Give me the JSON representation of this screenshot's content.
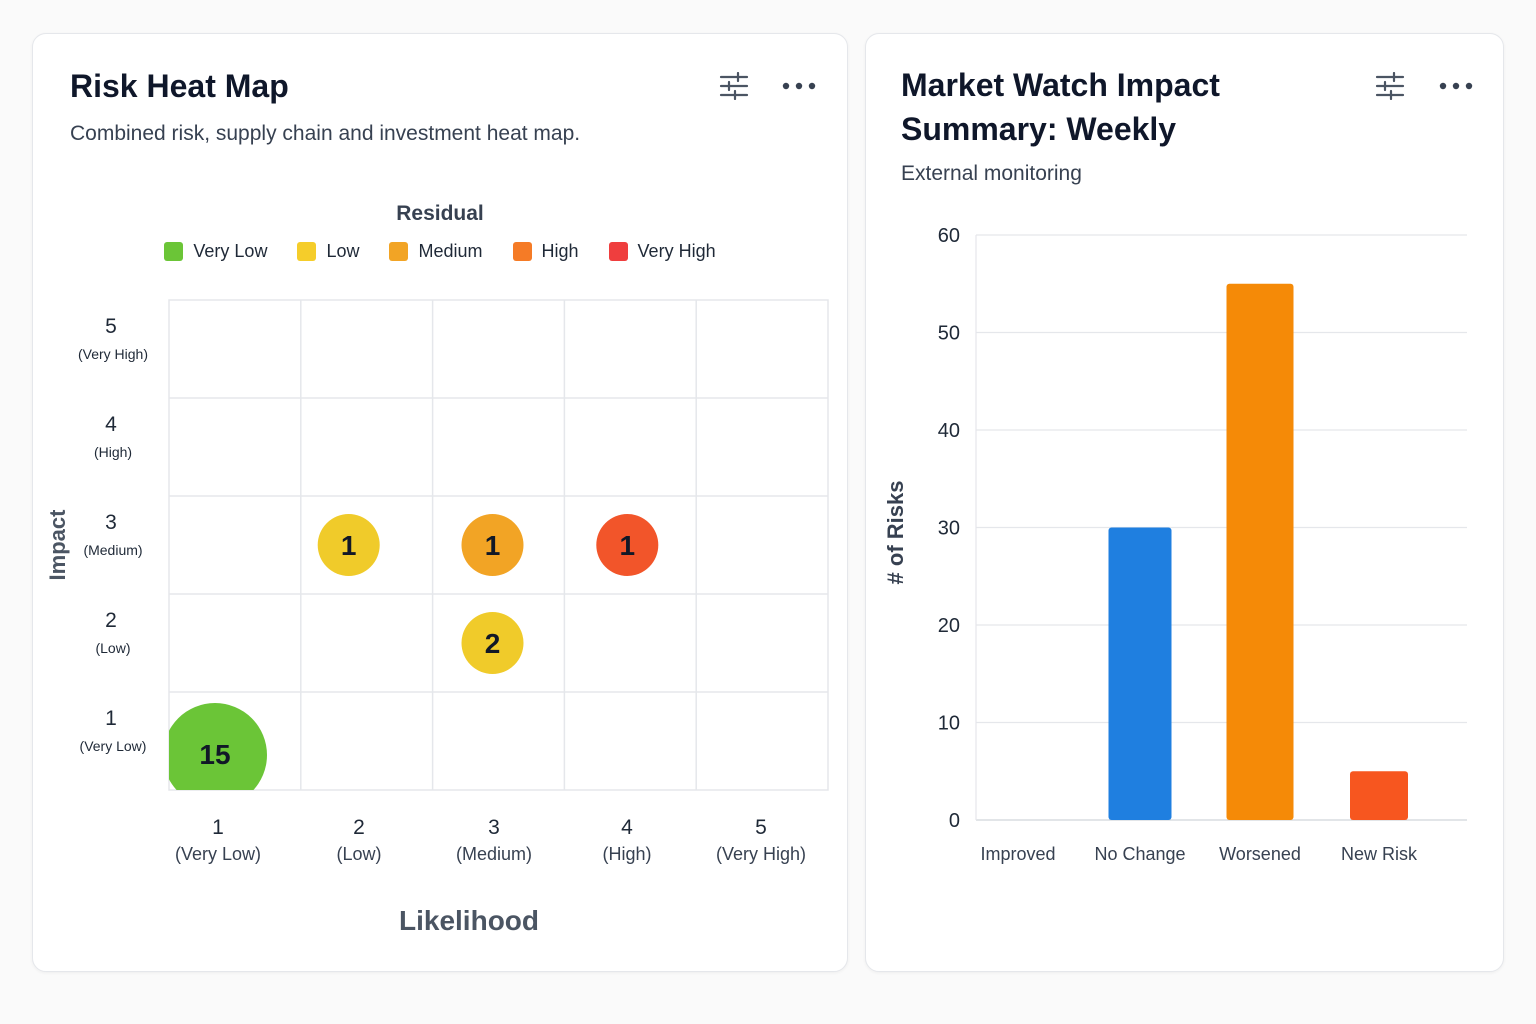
{
  "heatmap_card": {
    "title": "Risk Heat Map",
    "subtitle": "Combined risk, supply chain and investment heat map.",
    "filter_icon": "sliders-icon",
    "more_icon": "more-horizontal-icon"
  },
  "market_card": {
    "title_line1": "Market Watch Impact",
    "title_line2": "Summary: Weekly",
    "subtitle": "External monitoring",
    "filter_icon": "sliders-icon",
    "more_icon": "more-horizontal-icon"
  },
  "chart_data": [
    {
      "type": "heatmap",
      "title": "Risk Heat Map",
      "legend_title": "Residual",
      "legend": [
        {
          "label": "Very Low",
          "color": "#6bc537"
        },
        {
          "label": "Low",
          "color": "#f5cd2a"
        },
        {
          "label": "Medium",
          "color": "#f2a425"
        },
        {
          "label": "High",
          "color": "#f57b26"
        },
        {
          "label": "Very High",
          "color": "#ef3e3e"
        }
      ],
      "xlabel": "Likelihood",
      "ylabel": "Impact",
      "x_ticks": [
        {
          "num": "1",
          "label": "(Very Low)"
        },
        {
          "num": "2",
          "label": "(Low)"
        },
        {
          "num": "3",
          "label": "(Medium)"
        },
        {
          "num": "4",
          "label": "(High)"
        },
        {
          "num": "5",
          "label": "(Very High)"
        }
      ],
      "y_ticks": [
        {
          "num": "1",
          "label": "(Very Low)"
        },
        {
          "num": "2",
          "label": "(Low)"
        },
        {
          "num": "3",
          "label": "(Medium)"
        },
        {
          "num": "4",
          "label": "(High)"
        },
        {
          "num": "5",
          "label": "(Very High)"
        }
      ],
      "points": [
        {
          "likelihood": 1,
          "impact": 1,
          "count": 15,
          "residual": "Very Low",
          "color": "#6bc537"
        },
        {
          "likelihood": 2,
          "impact": 3,
          "count": 1,
          "residual": "Low",
          "color": "#f0cb2a"
        },
        {
          "likelihood": 3,
          "impact": 3,
          "count": 1,
          "residual": "Medium",
          "color": "#f2a425"
        },
        {
          "likelihood": 4,
          "impact": 3,
          "count": 1,
          "residual": "High",
          "color": "#f2552a"
        },
        {
          "likelihood": 3,
          "impact": 2,
          "count": 2,
          "residual": "Low",
          "color": "#f0cb2a"
        }
      ],
      "grid": true
    },
    {
      "type": "bar",
      "title": "Market Watch Impact Summary: Weekly",
      "categories": [
        "Improved",
        "No Change",
        "Worsened",
        "New Risk"
      ],
      "values": [
        0,
        30,
        55,
        5
      ],
      "colors": [
        "#1f7fe0",
        "#1f7fe0",
        "#f58a07",
        "#f7561f"
      ],
      "xlabel": "",
      "ylabel": "# of Risks",
      "ylim": [
        0,
        60
      ],
      "y_ticks": [
        0,
        10,
        20,
        30,
        40,
        50,
        60
      ],
      "grid": true
    }
  ]
}
